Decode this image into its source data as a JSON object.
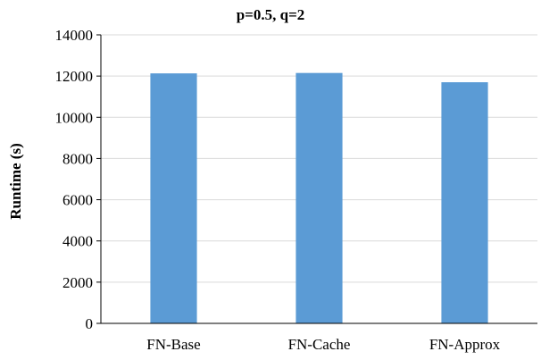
{
  "chart_data": {
    "type": "bar",
    "title": "p=0.5, q=2",
    "xlabel": "",
    "ylabel": "Runtime (s)",
    "categories": [
      "FN-Base",
      "FN-Cache",
      "FN-Approx"
    ],
    "values": [
      12130,
      12150,
      11700
    ],
    "ylim": [
      0,
      14000
    ],
    "yticks": [
      0,
      2000,
      4000,
      6000,
      8000,
      10000,
      12000,
      14000
    ],
    "grid": true,
    "legend": "none",
    "bar_color": "#5b9bd5"
  }
}
